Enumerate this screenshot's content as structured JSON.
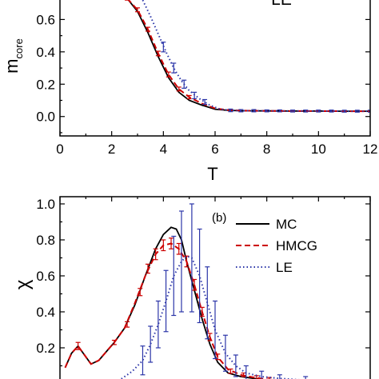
{
  "chart_data": [
    {
      "type": "line",
      "panel": "top",
      "title": "",
      "legend_tag": "LE",
      "xlabel": "T",
      "ylabel_main": "m",
      "ylabel_sub": "core",
      "xlim": [
        0,
        12
      ],
      "ylim": [
        -0.12,
        0.78
      ],
      "x_ticks": [
        "0",
        "2",
        "4",
        "6",
        "8",
        "10",
        "12"
      ],
      "y_ticks": [
        "0.0",
        "0.2",
        "0.4",
        "0.6"
      ],
      "grid": false,
      "series": [
        {
          "name": "MC",
          "color": "#000000",
          "dash": "",
          "x": [
            2.6,
            3.0,
            3.4,
            3.8,
            4.2,
            4.6,
            5.0,
            5.5,
            6.0,
            6.5,
            7,
            8,
            9,
            10,
            11,
            12
          ],
          "y": [
            0.73,
            0.65,
            0.52,
            0.37,
            0.24,
            0.15,
            0.1,
            0.07,
            0.045,
            0.038,
            0.036,
            0.035,
            0.034,
            0.034,
            0.033,
            0.033
          ]
        },
        {
          "name": "HMCG",
          "color": "#cc0000",
          "dash": "7,4",
          "x": [
            2.6,
            3.0,
            3.4,
            3.8,
            4.2,
            4.6,
            5.0,
            5.5,
            6.0,
            6.5,
            7,
            8,
            9,
            10,
            11,
            12
          ],
          "y": [
            0.73,
            0.66,
            0.54,
            0.39,
            0.26,
            0.17,
            0.12,
            0.08,
            0.05,
            0.04,
            0.037,
            0.035,
            0.034,
            0.034,
            0.033,
            0.033
          ],
          "errors": {
            "x": [
              2.6,
              3.0,
              3.4,
              3.8,
              4.2,
              4.6,
              5.0
            ],
            "y": [
              0.73,
              0.66,
              0.54,
              0.39,
              0.26,
              0.17,
              0.12
            ],
            "err": [
              0.01,
              0.012,
              0.012,
              0.014,
              0.015,
              0.012,
              0.01
            ]
          }
        },
        {
          "name": "LE",
          "color": "#2b35a8",
          "dash": "1.5,3",
          "x": [
            3.2,
            3.5,
            3.8,
            4.1,
            4.4,
            4.7,
            5.0,
            5.4,
            5.8,
            6.2,
            6.6,
            7,
            8,
            9,
            10,
            11,
            12
          ],
          "y": [
            0.72,
            0.62,
            0.51,
            0.4,
            0.3,
            0.22,
            0.16,
            0.11,
            0.07,
            0.045,
            0.038,
            0.036,
            0.035,
            0.034,
            0.034,
            0.033,
            0.033
          ],
          "errors": {
            "x": [
              4.0,
              4.4,
              4.8,
              5.2,
              5.6,
              6.6,
              7,
              7.5,
              8,
              8.5,
              9,
              9.5,
              10,
              10.5,
              11,
              11.5,
              12
            ],
            "y": [
              0.43,
              0.3,
              0.2,
              0.13,
              0.09,
              0.038,
              0.036,
              0.036,
              0.035,
              0.035,
              0.034,
              0.034,
              0.034,
              0.034,
              0.033,
              0.033,
              0.033
            ],
            "err": [
              0.03,
              0.03,
              0.025,
              0.02,
              0.015,
              0.008,
              0.007,
              0.007,
              0.006,
              0.006,
              0.006,
              0.006,
              0.006,
              0.006,
              0.006,
              0.006,
              0.006
            ]
          }
        }
      ]
    },
    {
      "type": "line",
      "panel": "bottom",
      "title": "",
      "panel_label": "(b)",
      "xlabel": "",
      "ylabel": "χ",
      "xlim": [
        0,
        12
      ],
      "ylim": [
        0,
        1.04
      ],
      "y_ticks": [
        "0.2",
        "0.4",
        "0.6",
        "0.8",
        "1.0"
      ],
      "grid": false,
      "legend_position": "top-right",
      "legend": [
        "MC",
        "HMCG",
        "LE"
      ],
      "series": [
        {
          "name": "MC",
          "color": "#000000",
          "dash": "",
          "x": [
            0.2,
            0.45,
            0.7,
            0.95,
            1.2,
            1.5,
            1.8,
            2.1,
            2.5,
            2.9,
            3.3,
            3.7,
            4.0,
            4.3,
            4.5,
            4.7,
            4.9,
            5.2,
            5.5,
            5.8,
            6.1,
            6.5,
            7.0,
            7.5,
            8.0,
            8.5,
            9.0
          ],
          "y": [
            0.09,
            0.17,
            0.21,
            0.16,
            0.11,
            0.13,
            0.18,
            0.23,
            0.31,
            0.44,
            0.6,
            0.75,
            0.83,
            0.87,
            0.86,
            0.8,
            0.68,
            0.52,
            0.36,
            0.22,
            0.12,
            0.06,
            0.04,
            0.03,
            0.02,
            0.015,
            0.01
          ]
        },
        {
          "name": "HMCG",
          "color": "#cc0000",
          "dash": "7,4",
          "x": [
            0.2,
            0.45,
            0.7,
            0.95,
            1.2,
            1.5,
            1.8,
            2.1,
            2.5,
            2.9,
            3.3,
            3.7,
            4.0,
            4.3,
            4.6,
            4.9,
            5.2,
            5.5,
            5.8,
            6.1,
            6.5,
            7.0,
            7.5,
            8.0,
            8.5,
            9.0
          ],
          "y": [
            0.09,
            0.17,
            0.21,
            0.16,
            0.11,
            0.13,
            0.18,
            0.23,
            0.31,
            0.45,
            0.6,
            0.72,
            0.77,
            0.78,
            0.75,
            0.68,
            0.55,
            0.4,
            0.26,
            0.15,
            0.08,
            0.05,
            0.035,
            0.025,
            0.02,
            0.015
          ],
          "errors": {
            "x": [
              0.7,
              2.1,
              2.6,
              3.1,
              3.4,
              3.7,
              4.0,
              4.3,
              4.6,
              4.9,
              5.2,
              5.5,
              5.8,
              6.1,
              6.6,
              7.1,
              7.6,
              8.1
            ],
            "y": [
              0.21,
              0.23,
              0.33,
              0.51,
              0.64,
              0.72,
              0.77,
              0.78,
              0.75,
              0.68,
              0.55,
              0.4,
              0.26,
              0.15,
              0.07,
              0.05,
              0.035,
              0.025
            ],
            "err": [
              0.02,
              0.012,
              0.015,
              0.02,
              0.025,
              0.03,
              0.03,
              0.03,
              0.03,
              0.03,
              0.03,
              0.025,
              0.02,
              0.015,
              0.012,
              0.01,
              0.01,
              0.01
            ]
          }
        },
        {
          "name": "LE",
          "color": "#2b35a8",
          "dash": "1.5,3",
          "x": [
            2.0,
            2.4,
            2.8,
            3.2,
            3.5,
            3.8,
            4.1,
            4.4,
            4.7,
            4.9,
            5.1,
            5.4,
            5.7,
            6.0,
            6.4,
            6.8,
            7.2,
            7.8,
            8.5,
            9.5
          ],
          "y": [
            0.0,
            0.03,
            0.07,
            0.13,
            0.22,
            0.33,
            0.46,
            0.6,
            0.68,
            0.71,
            0.7,
            0.6,
            0.45,
            0.3,
            0.17,
            0.1,
            0.06,
            0.04,
            0.03,
            0.02
          ],
          "errors": {
            "x": [
              3.2,
              3.5,
              3.8,
              4.1,
              4.4,
              4.7,
              5.1,
              5.4,
              5.7,
              6.0,
              6.4,
              6.8,
              7.2,
              7.8,
              8.5,
              9.5
            ],
            "y": [
              0.13,
              0.22,
              0.33,
              0.46,
              0.6,
              0.68,
              0.7,
              0.6,
              0.45,
              0.3,
              0.17,
              0.1,
              0.06,
              0.04,
              0.03,
              0.02
            ],
            "err": [
              0.08,
              0.1,
              0.13,
              0.17,
              0.22,
              0.28,
              0.3,
              0.26,
              0.2,
              0.16,
              0.1,
              0.06,
              0.04,
              0.03,
              0.02,
              0.02
            ]
          }
        }
      ]
    }
  ]
}
